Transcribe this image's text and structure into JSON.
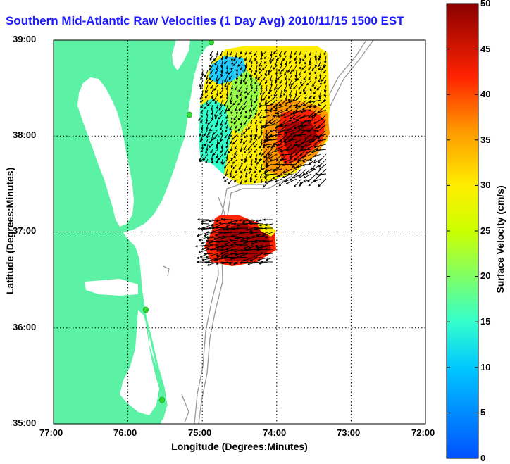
{
  "title": "Southern Mid-Atlantic Raw Velocities (1 Day Avg) 2010/11/15 1500 EST",
  "axes": {
    "xlabel": "Longitude (Degrees:Minutes)",
    "ylabel": "Latitude (Degrees:Minutes)",
    "x_ticks": [
      "77:00",
      "76:00",
      "75:00",
      "74:00",
      "73:00",
      "72:00"
    ],
    "y_ticks": [
      "39:00",
      "38:00",
      "37:00",
      "36:00",
      "35:00"
    ]
  },
  "colorbar": {
    "label": "Surface Velocity (cm/s)",
    "ticks": [
      "50",
      "45",
      "40",
      "35",
      "30",
      "25",
      "20",
      "15",
      "10",
      "5",
      "0"
    ],
    "range": [
      0,
      50
    ]
  },
  "colors": {
    "land": "#5cf2a5",
    "water": "#ffffff",
    "grid": "#000000",
    "bathymetry": "#999999",
    "title": "#1a1aff",
    "station": "#33dd33"
  }
}
